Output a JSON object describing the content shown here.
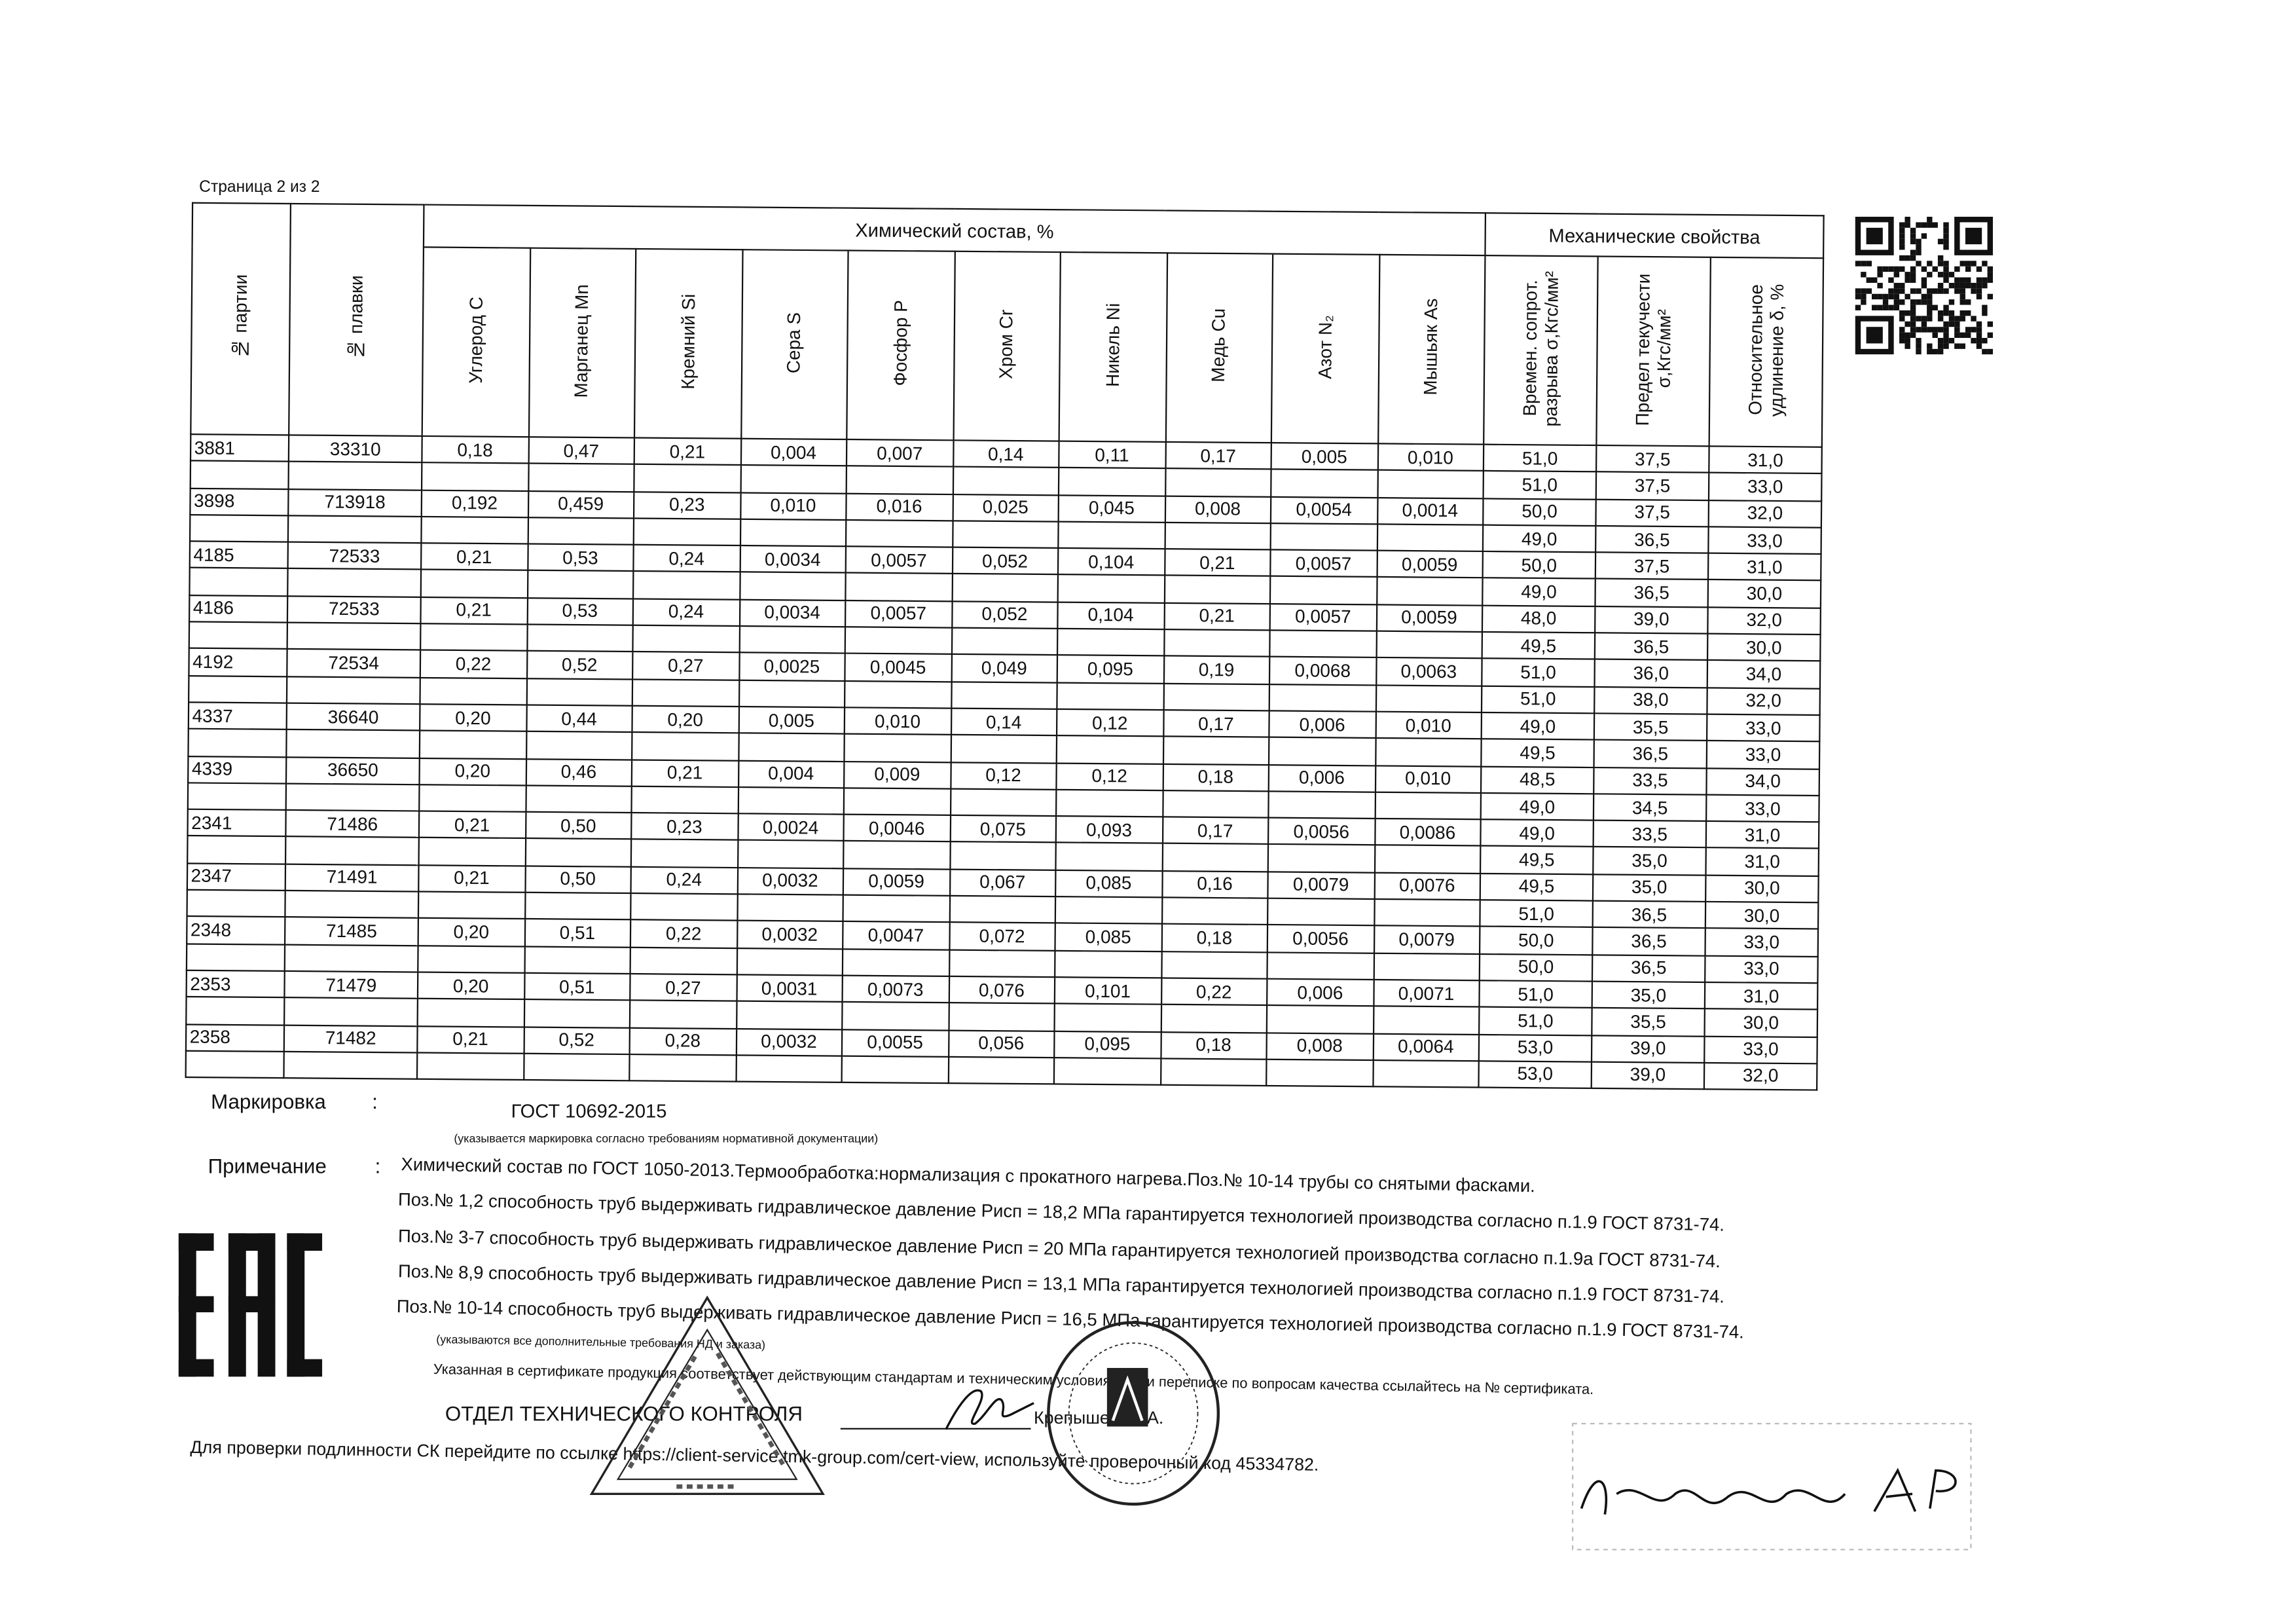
{
  "page_label": "Страница 2 из 2",
  "table": {
    "group_chem": "Химический состав, %",
    "group_mech": "Механические свойства",
    "headers": [
      "№ партии",
      "№ плавки",
      "Углерод C",
      "Марганец Mn",
      "Кремний Si",
      "Сера S",
      "Фосфор P",
      "Хром Cr",
      "Никель Ni",
      "Медь Cu",
      "Азот N₂",
      "Мышьяк As",
      "Времен. сопрот. разрыва σ,Кгс/мм²",
      "Предел текучести σ,Кгс/мм²",
      "Относительное удлинение δ, %"
    ],
    "rows": [
      {
        "party": "3881",
        "melt": "33310",
        "chem": [
          "0,18",
          "0,47",
          "0,21",
          "0,004",
          "0,007",
          "0,14",
          "0,11",
          "0,17",
          "0,005",
          "0,010"
        ]
      },
      {
        "party": "3898",
        "melt": "713918",
        "chem": [
          "0,192",
          "0,459",
          "0,23",
          "0,010",
          "0,016",
          "0,025",
          "0,045",
          "0,008",
          "0,0054",
          "0,0014"
        ]
      },
      {
        "party": "4185",
        "melt": "72533",
        "chem": [
          "0,21",
          "0,53",
          "0,24",
          "0,0034",
          "0,0057",
          "0,052",
          "0,104",
          "0,21",
          "0,0057",
          "0,0059"
        ]
      },
      {
        "party": "4186",
        "melt": "72533",
        "chem": [
          "0,21",
          "0,53",
          "0,24",
          "0,0034",
          "0,0057",
          "0,052",
          "0,104",
          "0,21",
          "0,0057",
          "0,0059"
        ]
      },
      {
        "party": "4192",
        "melt": "72534",
        "chem": [
          "0,22",
          "0,52",
          "0,27",
          "0,0025",
          "0,0045",
          "0,049",
          "0,095",
          "0,19",
          "0,0068",
          "0,0063"
        ]
      },
      {
        "party": "4337",
        "melt": "36640",
        "chem": [
          "0,20",
          "0,44",
          "0,20",
          "0,005",
          "0,010",
          "0,14",
          "0,12",
          "0,17",
          "0,006",
          "0,010"
        ]
      },
      {
        "party": "4339",
        "melt": "36650",
        "chem": [
          "0,20",
          "0,46",
          "0,21",
          "0,004",
          "0,009",
          "0,12",
          "0,12",
          "0,18",
          "0,006",
          "0,010"
        ]
      },
      {
        "party": "2341",
        "melt": "71486",
        "chem": [
          "0,21",
          "0,50",
          "0,23",
          "0,0024",
          "0,0046",
          "0,075",
          "0,093",
          "0,17",
          "0,0056",
          "0,0086"
        ]
      },
      {
        "party": "2347",
        "melt": "71491",
        "chem": [
          "0,21",
          "0,50",
          "0,24",
          "0,0032",
          "0,0059",
          "0,067",
          "0,085",
          "0,16",
          "0,0079",
          "0,0076"
        ]
      },
      {
        "party": "2348",
        "melt": "71485",
        "chem": [
          "0,20",
          "0,51",
          "0,22",
          "0,0032",
          "0,0047",
          "0,072",
          "0,085",
          "0,18",
          "0,0056",
          "0,0079"
        ]
      },
      {
        "party": "2353",
        "melt": "71479",
        "chem": [
          "0,20",
          "0,51",
          "0,27",
          "0,0031",
          "0,0073",
          "0,076",
          "0,101",
          "0,22",
          "0,006",
          "0,0071"
        ]
      },
      {
        "party": "2358",
        "melt": "71482",
        "chem": [
          "0,21",
          "0,52",
          "0,28",
          "0,0032",
          "0,0055",
          "0,056",
          "0,095",
          "0,18",
          "0,008",
          "0,0064"
        ]
      }
    ],
    "mech": [
      [
        "51,0",
        "37,5",
        "31,0"
      ],
      [
        "51,0",
        "37,5",
        "33,0"
      ],
      [
        "50,0",
        "37,5",
        "32,0"
      ],
      [
        "49,0",
        "36,5",
        "33,0"
      ],
      [
        "50,0",
        "37,5",
        "31,0"
      ],
      [
        "49,0",
        "36,5",
        "30,0"
      ],
      [
        "48,0",
        "39,0",
        "32,0"
      ],
      [
        "49,5",
        "36,5",
        "30,0"
      ],
      [
        "51,0",
        "36,0",
        "34,0"
      ],
      [
        "51,0",
        "38,0",
        "32,0"
      ],
      [
        "49,0",
        "35,5",
        "33,0"
      ],
      [
        "49,5",
        "36,5",
        "33,0"
      ],
      [
        "48,5",
        "33,5",
        "34,0"
      ],
      [
        "49,0",
        "34,5",
        "33,0"
      ],
      [
        "49,0",
        "33,5",
        "31,0"
      ],
      [
        "49,5",
        "35,0",
        "31,0"
      ],
      [
        "49,5",
        "35,0",
        "30,0"
      ],
      [
        "51,0",
        "36,5",
        "30,0"
      ],
      [
        "50,0",
        "36,5",
        "33,0"
      ],
      [
        "50,0",
        "36,5",
        "33,0"
      ],
      [
        "51,0",
        "35,0",
        "31,0"
      ],
      [
        "51,0",
        "35,5",
        "30,0"
      ],
      [
        "53,0",
        "39,0",
        "33,0"
      ],
      [
        "53,0",
        "39,0",
        "32,0"
      ]
    ]
  },
  "marking": {
    "label": "Маркировка",
    "colon": ":",
    "value": "ГОСТ 10692-2015",
    "hint": "(указывается маркировка согласно требованиям нормативной документации)"
  },
  "notes": {
    "label": "Примечание",
    "colon": ":",
    "lines": [
      "Химический состав по ГОСТ 1050-2013.Термообработка:нормализация с прокатного нагрева.Поз.№ 10-14 трубы со снятыми фасками.",
      "Поз.№ 1,2 способность труб выдерживать гидравлическое давление Рисп = 18,2 МПа гарантируется технологией производства согласно п.1.9  ГОСТ 8731-74.",
      "Поз.№ 3-7 способность труб выдерживать гидравлическое давление Рисп = 20 МПа гарантируется технологией производства согласно п.1.9а ГОСТ 8731-74.",
      "Поз.№ 8,9 способность труб выдерживать гидравлическое давление Рисп = 13,1 МПа гарантируется технологией производства согласно п.1.9  ГОСТ 8731-74.",
      "Поз.№ 10-14 способность труб выдерживать гидравлическое давление Рисп = 16,5 МПа гарантируется технологией производства согласно п.1.9  ГОСТ 8731-74."
    ],
    "hint": "(указываются все дополнительные требования НД и заказа)"
  },
  "conformity": "Указанная в сертификате продукция соответствует действующим стандартам и техническим условиям. При переписке по вопросам качества ссылайтесь на № сертификата.",
  "department": "ОТДЕЛ ТЕХНИЧЕСКОГО КОНТРОЛЯ",
  "signer": "Крепышева Т.А.",
  "verify": "Для проверки подлинности СК перейдите по ссылке https://client-service.tmk-group.com/cert-view, используйте проверочный код  45334782.",
  "logo_text": "EAC",
  "stamp_triangle_text": "ОТДЕЛ ТЕХНИЧЕСКОГО КОНТРОЛЯ",
  "icons": {
    "qr": "qr-code",
    "eac": "eac-mark",
    "stamp1": "triangle-stamp",
    "stamp2": "round-stamp"
  }
}
